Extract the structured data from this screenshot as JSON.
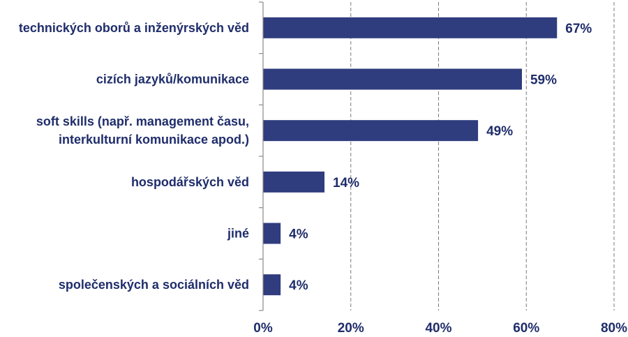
{
  "chart_data": {
    "type": "bar",
    "orientation": "horizontal",
    "categories": [
      [
        "technických oborů a inženýrských věd"
      ],
      [
        "cizích jazyků/komunikace"
      ],
      [
        "soft skills (např. management času,",
        "interkulturní komunikace apod.)"
      ],
      [
        "hospodářských věd"
      ],
      [
        "jiné"
      ],
      [
        "společenských a sociálních věd"
      ]
    ],
    "values": [
      67,
      59,
      49,
      14,
      4,
      4
    ],
    "data_labels": [
      "67%",
      "59%",
      "49%",
      "14%",
      "4%",
      "4%"
    ],
    "xlim": [
      0,
      80
    ],
    "x_ticks": [
      0,
      20,
      40,
      60,
      80
    ],
    "x_tick_labels": [
      "0%",
      "20%",
      "40%",
      "60%",
      "80%"
    ],
    "grid": "vertical-dashed",
    "legend": "none",
    "bar_color": "#2f3c7e",
    "text_color": "#1f2d6b"
  }
}
